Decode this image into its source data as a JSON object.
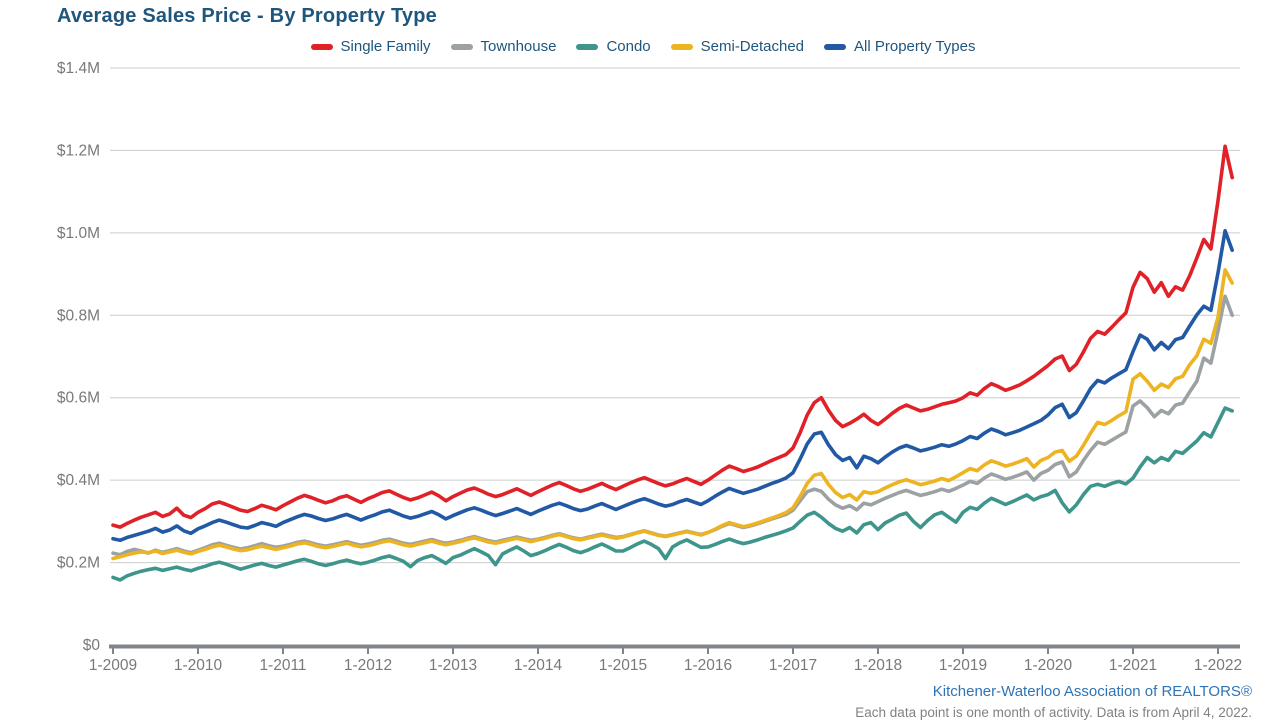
{
  "title": "Average Sales Price - By Property Type",
  "attribution": "Kitchener-Waterloo Association of REALTORS®",
  "footnote": "Each data point is one month of activity. Data is from April 4, 2022.",
  "colors": {
    "title_text": "#1e567e",
    "legend_text": "#1e567e",
    "axis_label_text": "#77797c",
    "gridline": "#cbcccd",
    "axis_line": "#818488",
    "attribution_text": "#2e74b6",
    "footnote_text": "#7f8285",
    "background": "#ffffff"
  },
  "chart_data": {
    "type": "line",
    "title": "Average Sales Price - By Property Type",
    "x_start": "2009-01",
    "x_interval": "month",
    "points_per_series": 159,
    "x_tick_labels": [
      "1-2009",
      "1-2010",
      "1-2011",
      "1-2012",
      "1-2013",
      "1-2014",
      "1-2015",
      "1-2016",
      "1-2017",
      "1-2018",
      "1-2019",
      "1-2020",
      "1-2021",
      "1-2022"
    ],
    "y_tick_labels": [
      "$0",
      "$0.2M",
      "$0.4M",
      "$0.6M",
      "$0.8M",
      "$1.0M",
      "$1.2M",
      "$1.4M"
    ],
    "y_tick_values_thousands": [
      0,
      200,
      400,
      600,
      800,
      1000,
      1200,
      1400
    ],
    "ylim_thousands": [
      0,
      1400
    ],
    "values_unit": "CAD thousands",
    "grid": true,
    "legend_position": "top",
    "series": [
      {
        "name": "Single Family",
        "color": "#e02127",
        "values": [
          291,
          286,
          295,
          303,
          310,
          316,
          322,
          312,
          318,
          332,
          315,
          309,
          322,
          331,
          342,
          347,
          341,
          334,
          327,
          324,
          331,
          339,
          334,
          328,
          338,
          347,
          356,
          363,
          358,
          351,
          345,
          350,
          358,
          362,
          354,
          346,
          355,
          362,
          370,
          374,
          366,
          358,
          352,
          357,
          364,
          371,
          362,
          350,
          360,
          368,
          376,
          381,
          374,
          366,
          360,
          365,
          372,
          379,
          371,
          363,
          372,
          380,
          388,
          394,
          387,
          379,
          373,
          378,
          385,
          392,
          384,
          377,
          385,
          393,
          400,
          406,
          399,
          392,
          386,
          391,
          398,
          404,
          397,
          390,
          400,
          412,
          424,
          434,
          428,
          421,
          426,
          432,
          440,
          448,
          455,
          462,
          478,
          515,
          558,
          588,
          600,
          570,
          545,
          530,
          538,
          548,
          560,
          545,
          535,
          548,
          562,
          574,
          582,
          575,
          568,
          572,
          578,
          584,
          588,
          592,
          600,
          612,
          606,
          622,
          634,
          627,
          618,
          624,
          631,
          641,
          652,
          665,
          678,
          694,
          701,
          666,
          681,
          711,
          744,
          761,
          754,
          771,
          789,
          806,
          868,
          904,
          889,
          856,
          879,
          846,
          869,
          861,
          896,
          939,
          984,
          961,
          1078,
          1210,
          1134
        ]
      },
      {
        "name": "Townhouse",
        "color": "#9ca1a3",
        "values": [
          223,
          219,
          227,
          232,
          228,
          223,
          230,
          225,
          229,
          234,
          228,
          224,
          230,
          236,
          243,
          247,
          242,
          237,
          233,
          236,
          241,
          246,
          241,
          237,
          240,
          244,
          249,
          252,
          248,
          243,
          240,
          243,
          247,
          251,
          246,
          242,
          245,
          249,
          254,
          257,
          252,
          247,
          244,
          248,
          252,
          256,
          251,
          247,
          250,
          254,
          259,
          263,
          258,
          253,
          250,
          254,
          258,
          262,
          258,
          254,
          257,
          261,
          266,
          270,
          265,
          260,
          257,
          261,
          265,
          269,
          265,
          261,
          263,
          268,
          273,
          277,
          272,
          267,
          264,
          268,
          272,
          276,
          272,
          268,
          273,
          280,
          288,
          295,
          290,
          285,
          289,
          294,
          300,
          306,
          311,
          317,
          327,
          350,
          372,
          378,
          373,
          354,
          340,
          332,
          338,
          328,
          344,
          340,
          348,
          356,
          363,
          370,
          375,
          369,
          363,
          367,
          372,
          378,
          373,
          380,
          388,
          397,
          392,
          405,
          415,
          409,
          402,
          407,
          413,
          420,
          400,
          416,
          424,
          438,
          444,
          408,
          420,
          448,
          472,
          492,
          487,
          497,
          507,
          517,
          580,
          592,
          576,
          554,
          569,
          561,
          582,
          587,
          614,
          640,
          696,
          684,
          762,
          846,
          800
        ]
      },
      {
        "name": "Condo",
        "color": "#3e958c",
        "values": [
          164,
          158,
          168,
          174,
          179,
          183,
          186,
          181,
          185,
          189,
          184,
          180,
          186,
          191,
          197,
          201,
          196,
          190,
          184,
          189,
          194,
          198,
          193,
          189,
          194,
          199,
          204,
          208,
          203,
          197,
          193,
          197,
          202,
          206,
          201,
          197,
          201,
          206,
          212,
          216,
          210,
          203,
          190,
          205,
          212,
          217,
          208,
          198,
          212,
          218,
          226,
          234,
          226,
          217,
          195,
          221,
          230,
          238,
          228,
          217,
          222,
          229,
          237,
          244,
          237,
          229,
          224,
          230,
          238,
          245,
          237,
          228,
          228,
          236,
          245,
          252,
          244,
          234,
          210,
          238,
          248,
          255,
          246,
          237,
          238,
          244,
          251,
          257,
          251,
          246,
          250,
          255,
          261,
          266,
          271,
          277,
          284,
          300,
          315,
          322,
          310,
          295,
          283,
          276,
          285,
          272,
          292,
          297,
          280,
          296,
          305,
          315,
          320,
          300,
          285,
          302,
          316,
          322,
          310,
          298,
          322,
          334,
          329,
          344,
          356,
          349,
          341,
          348,
          356,
          364,
          352,
          360,
          365,
          375,
          345,
          323,
          340,
          365,
          385,
          390,
          385,
          392,
          397,
          391,
          405,
          432,
          455,
          442,
          455,
          448,
          470,
          465,
          480,
          495,
          515,
          505,
          540,
          575,
          568
        ]
      },
      {
        "name": "Semi-Detached",
        "color": "#edb321",
        "values": [
          210,
          214,
          219,
          223,
          226,
          224,
          228,
          222,
          226,
          230,
          225,
          221,
          227,
          232,
          238,
          242,
          238,
          233,
          229,
          231,
          236,
          240,
          236,
          232,
          236,
          240,
          245,
          248,
          244,
          239,
          236,
          239,
          243,
          247,
          242,
          238,
          241,
          245,
          250,
          253,
          248,
          243,
          240,
          244,
          248,
          252,
          247,
          243,
          247,
          251,
          256,
          260,
          255,
          250,
          247,
          251,
          255,
          259,
          255,
          251,
          255,
          259,
          264,
          268,
          263,
          258,
          255,
          259,
          263,
          267,
          263,
          259,
          262,
          267,
          272,
          276,
          271,
          266,
          263,
          267,
          271,
          275,
          271,
          267,
          273,
          281,
          290,
          297,
          292,
          287,
          291,
          296,
          302,
          308,
          314,
          321,
          333,
          360,
          392,
          412,
          416,
          390,
          370,
          358,
          365,
          352,
          372,
          368,
          372,
          381,
          389,
          396,
          401,
          395,
          389,
          393,
          398,
          404,
          399,
          408,
          418,
          428,
          423,
          437,
          447,
          441,
          434,
          439,
          445,
          452,
          432,
          448,
          455,
          468,
          472,
          446,
          458,
          484,
          514,
          540,
          535,
          545,
          556,
          566,
          645,
          658,
          640,
          618,
          633,
          625,
          646,
          652,
          680,
          702,
          742,
          732,
          795,
          910,
          878
        ]
      },
      {
        "name": "All Property Types",
        "color": "#2159a5",
        "values": [
          258,
          254,
          261,
          266,
          271,
          276,
          283,
          274,
          279,
          289,
          277,
          271,
          282,
          289,
          297,
          303,
          298,
          292,
          286,
          284,
          290,
          297,
          293,
          288,
          297,
          304,
          311,
          317,
          313,
          307,
          302,
          306,
          312,
          317,
          310,
          303,
          310,
          316,
          323,
          327,
          320,
          313,
          308,
          312,
          318,
          324,
          316,
          306,
          314,
          321,
          328,
          333,
          327,
          320,
          314,
          319,
          325,
          331,
          324,
          317,
          325,
          332,
          339,
          344,
          338,
          331,
          326,
          330,
          337,
          343,
          336,
          329,
          336,
          343,
          350,
          355,
          349,
          342,
          337,
          341,
          348,
          353,
          347,
          341,
          350,
          361,
          371,
          380,
          374,
          368,
          373,
          378,
          385,
          392,
          398,
          405,
          418,
          451,
          488,
          512,
          516,
          486,
          462,
          448,
          455,
          430,
          458,
          452,
          442,
          456,
          468,
          478,
          484,
          478,
          471,
          475,
          480,
          486,
          482,
          488,
          496,
          506,
          501,
          514,
          524,
          518,
          510,
          515,
          521,
          529,
          537,
          545,
          558,
          576,
          584,
          552,
          564,
          592,
          622,
          642,
          636,
          648,
          658,
          668,
          712,
          752,
          742,
          716,
          734,
          719,
          741,
          746,
          774,
          801,
          822,
          812,
          903,
          1005,
          958
        ]
      }
    ]
  },
  "layout_geometry": {
    "plot_left_x": 113,
    "plot_right_x": 1218,
    "plot_top_y": 68,
    "plot_bottom_y": 645,
    "year_tick_spacing_px": 85
  }
}
